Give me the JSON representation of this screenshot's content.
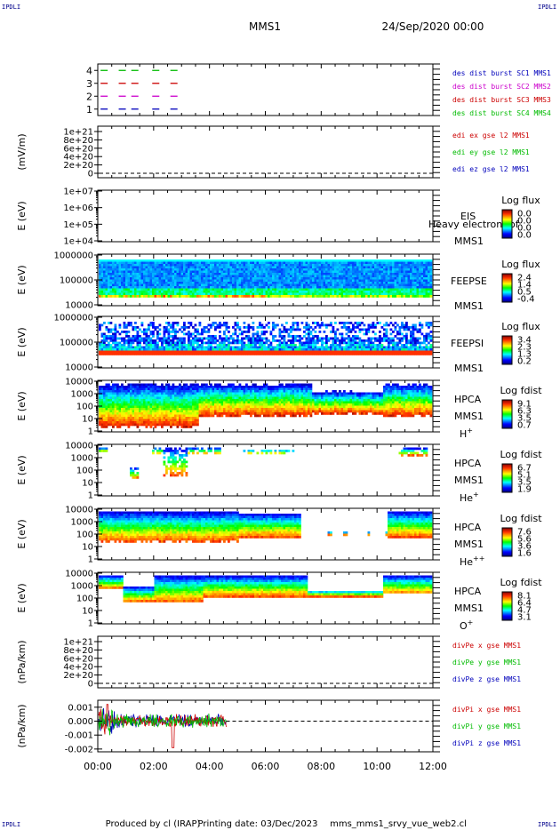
{
  "corner_label": "IPDLI",
  "header": {
    "spacecraft": "MMS1",
    "datetime": "24/Sep/2020 00:00"
  },
  "footer": {
    "produced_by": "Produced by cl (IRAP)",
    "printing_date": "Printing date: 03/Dec/2023",
    "filename": "mms_mms1_srvy_vue_web2.cl"
  },
  "colors": {
    "red": "#cc0000",
    "magenta": "#cc00cc",
    "green": "#00bb00",
    "blue": "#0000bb"
  },
  "chart_data": [
    {
      "id": "burst",
      "type": "line",
      "ylim": [
        0.5,
        4.5
      ],
      "yticks": [
        "1",
        "2",
        "3",
        "4"
      ],
      "series": [
        {
          "name": "des dist burst SC1 MMS1",
          "color": "#0000bb",
          "y": 1
        },
        {
          "name": "des dist burst SC2 MMS2",
          "color": "#cc00cc",
          "y": 2
        },
        {
          "name": "des dist burst SC3 MMS3",
          "color": "#cc0000",
          "y": 3
        },
        {
          "name": "des dist burst SC4 MMS4",
          "color": "#00bb00",
          "y": 4
        }
      ],
      "segments_hours": [
        [
          0.1,
          0.5
        ],
        [
          0.75,
          0.95
        ],
        [
          1.2,
          1.45
        ],
        [
          1.95,
          2.2
        ],
        [
          2.6,
          2.8
        ]
      ]
    },
    {
      "id": "edi",
      "type": "line",
      "ylabel": "(mV/m)",
      "yticks": [
        "0",
        "2e+20",
        "4e+20",
        "6e+20",
        "8e+20",
        "1e+21"
      ],
      "series": [
        {
          "name": "edi ex gse l2 MMS1",
          "color": "#cc0000"
        },
        {
          "name": "edi ey gse l2 MMS1",
          "color": "#00bb00"
        },
        {
          "name": "edi ez gse l2 MMS1",
          "color": "#0000bb"
        }
      ]
    },
    {
      "id": "eis",
      "type": "heatmap",
      "ylabel": "E (eV)",
      "yticks": [
        "1e+04",
        "1e+05",
        "1e+06",
        "1e+07"
      ],
      "labels": [
        "EIS",
        "Heavy electron tof",
        "MMS1"
      ],
      "colorbar": {
        "title": "Log flux",
        "ticks": [
          "0.0",
          "0.0",
          "0.0",
          "0.0"
        ]
      }
    },
    {
      "id": "feepse",
      "type": "heatmap",
      "ylabel": "E (eV)",
      "yticks": [
        "10000",
        "100000",
        "1000000"
      ],
      "labels": [
        "FEEPSE",
        "MMS1"
      ],
      "colorbar": {
        "title": "Log flux",
        "ticks": [
          "2.4",
          "1.4",
          "0.5",
          "-0.4"
        ]
      }
    },
    {
      "id": "feepsi",
      "type": "heatmap",
      "ylabel": "E (eV)",
      "yticks": [
        "10000",
        "100000",
        "1000000"
      ],
      "labels": [
        "FEEPSI",
        "MMS1"
      ],
      "colorbar": {
        "title": "Log flux",
        "ticks": [
          "3.4",
          "2.3",
          "1.3",
          "0.2"
        ]
      }
    },
    {
      "id": "hpca_h",
      "type": "heatmap",
      "ylabel": "E (eV)",
      "yticks": [
        "1",
        "10",
        "100",
        "1000",
        "10000"
      ],
      "labels": [
        "HPCA",
        "MMS1",
        "H",
        "+"
      ],
      "colorbar": {
        "title": "Log fdist",
        "ticks": [
          "9.1",
          "6.3",
          "3.5",
          "0.7"
        ]
      }
    },
    {
      "id": "hpca_he",
      "type": "heatmap",
      "ylabel": "E (eV)",
      "yticks": [
        "1",
        "10",
        "100",
        "1000",
        "10000"
      ],
      "labels": [
        "HPCA",
        "MMS1",
        "He",
        "+"
      ],
      "colorbar": {
        "title": "Log fdist",
        "ticks": [
          "6.7",
          "5.1",
          "3.5",
          "1.9"
        ]
      }
    },
    {
      "id": "hpca_hepp",
      "type": "heatmap",
      "ylabel": "E (eV)",
      "yticks": [
        "1",
        "10",
        "100",
        "1000",
        "10000"
      ],
      "labels": [
        "HPCA",
        "MMS1",
        "He",
        "++"
      ],
      "colorbar": {
        "title": "Log fdist",
        "ticks": [
          "7.6",
          "5.6",
          "3.6",
          "1.6"
        ]
      }
    },
    {
      "id": "hpca_o",
      "type": "heatmap",
      "ylabel": "E (eV)",
      "yticks": [
        "1",
        "10",
        "100",
        "1000",
        "10000"
      ],
      "labels": [
        "HPCA",
        "MMS1",
        "O",
        "+"
      ],
      "colorbar": {
        "title": "Log fdist",
        "ticks": [
          "8.1",
          "6.4",
          "4.7",
          "3.1"
        ]
      }
    },
    {
      "id": "divpe",
      "type": "line",
      "ylabel": "(nPa/km)",
      "yticks": [
        "0",
        "2e+20",
        "4e+20",
        "6e+20",
        "8e+20",
        "1e+21"
      ],
      "series": [
        {
          "name": "divPe x gse MMS1",
          "color": "#cc0000"
        },
        {
          "name": "divPe y gse MMS1",
          "color": "#00bb00"
        },
        {
          "name": "divPe z gse MMS1",
          "color": "#0000bb"
        }
      ]
    },
    {
      "id": "divpi",
      "type": "line",
      "ylabel": "(nPa/km)",
      "yticks": [
        "-0.002",
        "-0.001",
        "0.000",
        "0.001"
      ],
      "ylim": [
        -0.0022,
        0.0015
      ],
      "series": [
        {
          "name": "divPi x gse MMS1",
          "color": "#cc0000"
        },
        {
          "name": "divPi y gse MMS1",
          "color": "#00bb00"
        },
        {
          "name": "divPi z gse MMS1",
          "color": "#0000bb"
        }
      ]
    }
  ],
  "xaxis": {
    "ticks": [
      "00:00",
      "02:00",
      "04:00",
      "06:00",
      "08:00",
      "10:00",
      "12:00"
    ],
    "range_hours": [
      0,
      12
    ]
  }
}
